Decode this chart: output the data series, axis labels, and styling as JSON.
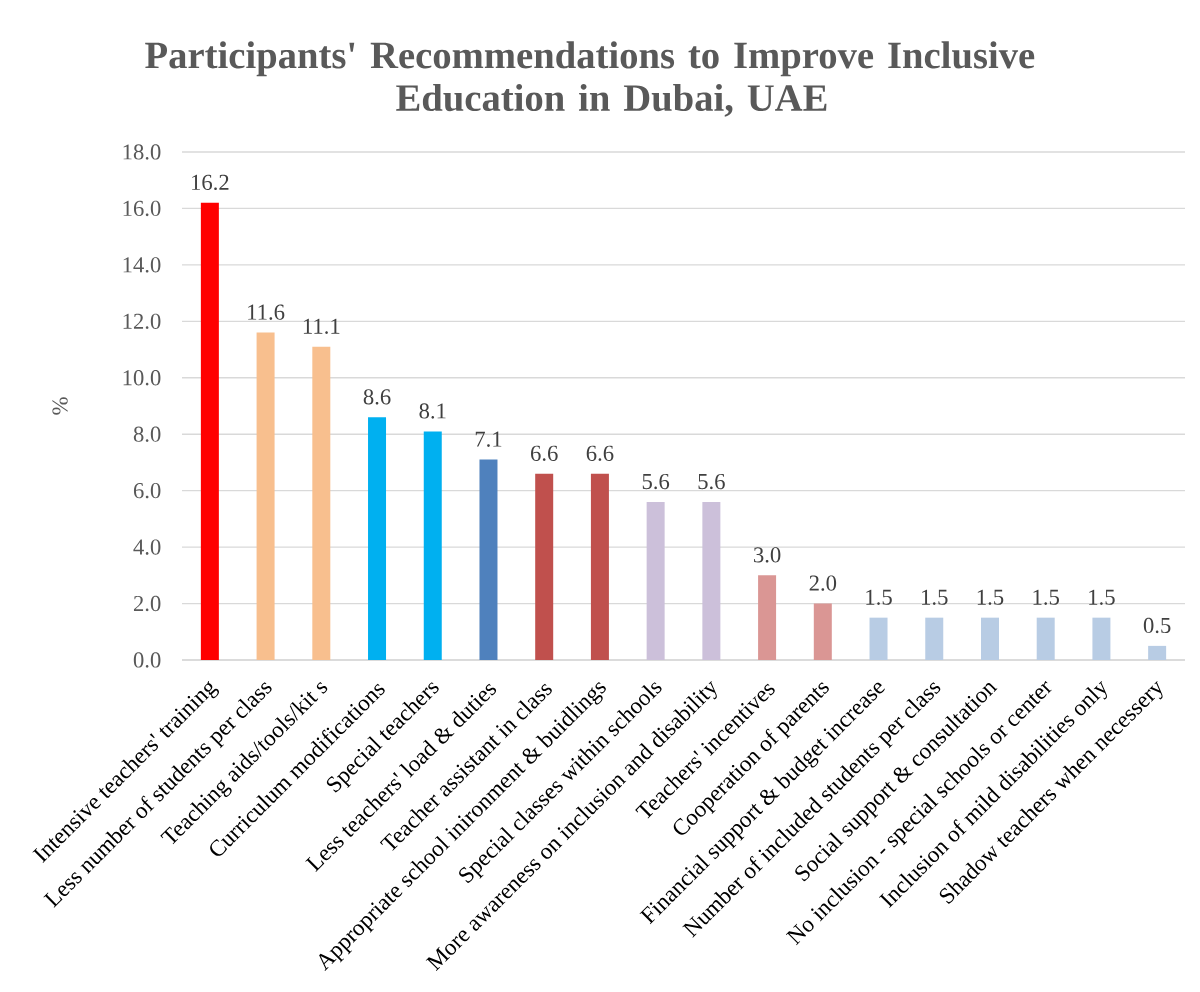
{
  "chart_data": {
    "type": "bar",
    "title": "Participants' Recommendations to Improve Inclusive Education in Dubai, UAE",
    "ylabel": "%",
    "categories": [
      "Intensive teachers' training",
      "Less number of students per class",
      "Teaching aids/tools/kit s",
      "Curriculum modifications",
      "Special teachers",
      "Less teachers' load & duties",
      "Teacher assistant in class",
      "Appropriate school inironment & buidlings",
      "Special classes within schools",
      "More awareness on inclusion and disability",
      "Teachers' incentives",
      "Cooperation of parents",
      "Financial support & budget increase",
      "Number of included students per class",
      "Social support & consultation",
      "No inclusion - special schools or center",
      "Inclusion of mild disabilities only",
      "Shadow teachers when necessery"
    ],
    "values": [
      16.2,
      11.6,
      11.1,
      8.6,
      8.1,
      7.1,
      6.6,
      6.6,
      5.6,
      5.6,
      3.0,
      2.0,
      1.5,
      1.5,
      1.5,
      1.5,
      1.5,
      0.5
    ],
    "value_labels": [
      "16.2",
      "11.6",
      "11.1",
      "8.6",
      "8.1",
      "7.1",
      "6.6",
      "6.6",
      "5.6",
      "5.6",
      "3.0",
      "2.0",
      "1.5",
      "1.5",
      "1.5",
      "1.5",
      "1.5",
      "0.5"
    ],
    "colors": [
      "#ff0000",
      "#f8bf8e",
      "#f8bf8e",
      "#00b0f0",
      "#00b0f0",
      "#4f81bd",
      "#c0504d",
      "#c0504d",
      "#ccc0da",
      "#ccc0da",
      "#da9694",
      "#da9694",
      "#b8cce4",
      "#b8cce4",
      "#b8cce4",
      "#b8cce4",
      "#b8cce4",
      "#b8cce4"
    ],
    "ylim": [
      0,
      18
    ],
    "yticks": [
      {
        "value": 0,
        "label": "0.0"
      },
      {
        "value": 2,
        "label": "2.0"
      },
      {
        "value": 4,
        "label": "4.0"
      },
      {
        "value": 6,
        "label": "6.0"
      },
      {
        "value": 8,
        "label": "8.0"
      },
      {
        "value": 10,
        "label": "10.0"
      },
      {
        "value": 12,
        "label": "12.0"
      },
      {
        "value": 14,
        "label": "14.0"
      },
      {
        "value": 16,
        "label": "16.0"
      },
      {
        "value": 18,
        "label": "18.0"
      }
    ],
    "grid": "y"
  }
}
